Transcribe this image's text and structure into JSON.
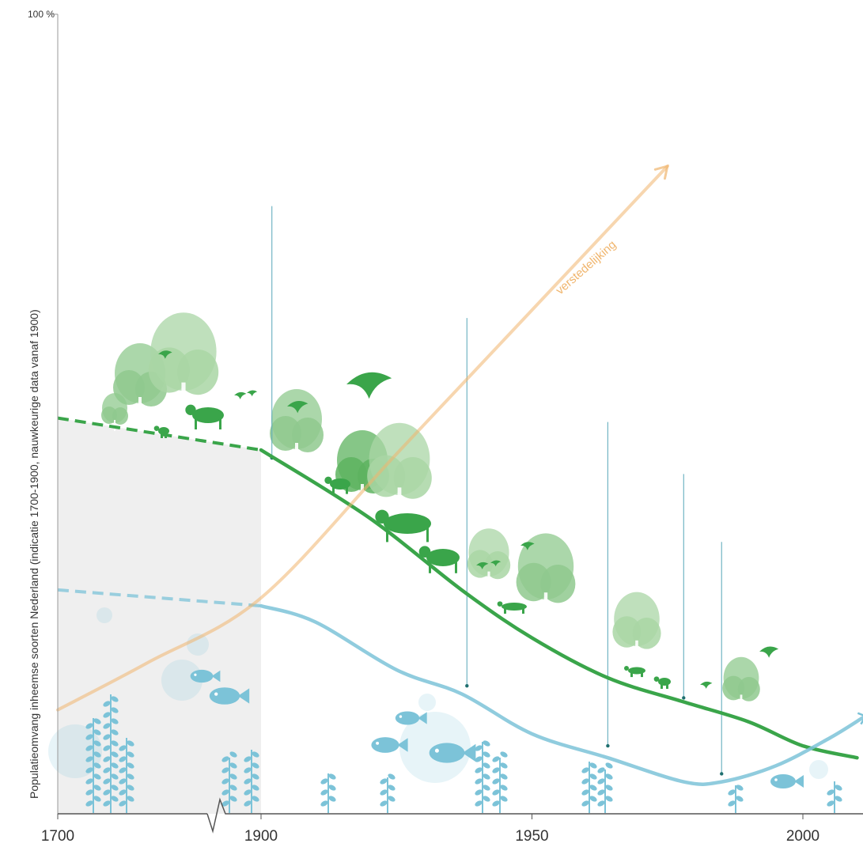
{
  "chart_data": {
    "type": "line",
    "title": "",
    "ylabel": "Populatieomvang inheemse soorten Nederland  (indicatie 1700-1900, nauwkeurige data vanaf 1900)",
    "xlabel": "",
    "ytick_top_label": "100 %",
    "ylim": [
      0,
      100
    ],
    "x_ticks": [
      1700,
      1900,
      1950,
      2000
    ],
    "x_tick_labels": [
      "1700",
      "1900",
      "1950",
      "2000"
    ],
    "axis_break": "between 1700 and 1900",
    "shaded_region": {
      "from": 1700,
      "to": 1900,
      "color": "#efefef"
    },
    "colors": {
      "land": "#3aa54a",
      "water": "#7cc3d8",
      "urban": "#f0b56d",
      "axis": "#555555"
    },
    "series": [
      {
        "kind": "land",
        "points": [
          [
            1700,
            49.5
          ],
          [
            1900,
            45.5
          ],
          [
            1920,
            37
          ],
          [
            1937,
            28
          ],
          [
            1950,
            22
          ],
          [
            1964,
            17
          ],
          [
            1978,
            14
          ],
          [
            1990,
            11.5
          ],
          [
            2000,
            8.5
          ],
          [
            2010,
            7
          ]
        ]
      },
      {
        "kind": "water",
        "points": [
          [
            1700,
            28
          ],
          [
            1900,
            26
          ],
          [
            1910,
            24
          ],
          [
            1925,
            18
          ],
          [
            1937,
            15
          ],
          [
            1950,
            10
          ],
          [
            1964,
            7
          ],
          [
            1978,
            4
          ],
          [
            1985,
            4
          ],
          [
            1995,
            6
          ],
          [
            2005,
            9.5
          ],
          [
            2011,
            12
          ]
        ]
      },
      {
        "name": "verstedelijking",
        "kind": "urban",
        "points": [
          [
            1700,
            13
          ],
          [
            1790,
            19
          ],
          [
            1900,
            27
          ],
          [
            1925,
            45
          ],
          [
            1950,
            63
          ],
          [
            1975,
            81
          ]
        ]
      }
    ],
    "event_markers": [
      {
        "x": 1902,
        "from": 76,
        "to": 44.5
      },
      {
        "x": 1938,
        "from": 62,
        "to": 16
      },
      {
        "x": 1964,
        "from": 49,
        "to": 8.5
      },
      {
        "x": 1978,
        "from": 42.5,
        "to": 14.5
      },
      {
        "x": 1985,
        "from": 34,
        "to": 5
      }
    ],
    "illustrations": {
      "land": [
        "tree-icon",
        "deer-icon",
        "bird-icon",
        "cow-icon",
        "pig-icon",
        "fox-icon",
        "squirrel-icon",
        "bush-icon"
      ],
      "water": [
        "fish-icon",
        "waterplant-icon",
        "bubble-icon"
      ]
    }
  }
}
